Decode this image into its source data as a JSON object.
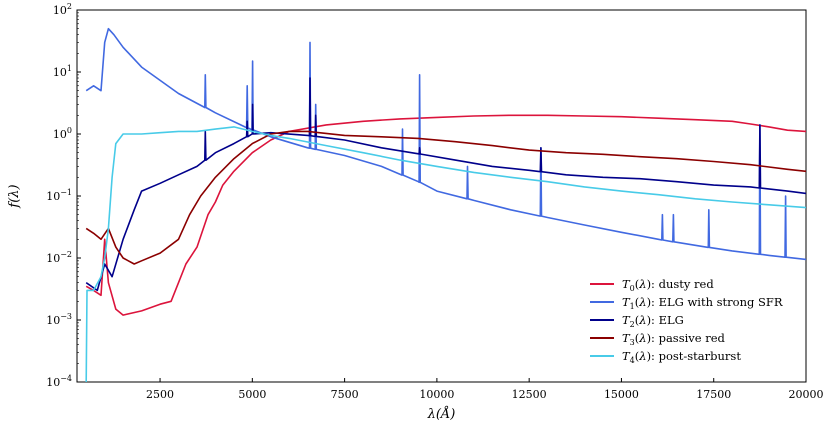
{
  "chart_data": {
    "type": "line",
    "title": "",
    "xlabel": "λ(Å)",
    "ylabel": "f(λ)",
    "xlim": [
      250,
      20000
    ],
    "ylim": [
      0.0001,
      100
    ],
    "yscale": "log",
    "grid": false,
    "legend_position": "lower-right",
    "x_ticks": [
      {
        "value": 2500,
        "label": "2500"
      },
      {
        "value": 5000,
        "label": "5000"
      },
      {
        "value": 7500,
        "label": "7500"
      },
      {
        "value": 10000,
        "label": "10000"
      },
      {
        "value": 12500,
        "label": "12500"
      },
      {
        "value": 15000,
        "label": "15000"
      },
      {
        "value": 17500,
        "label": "17500"
      },
      {
        "value": 20000,
        "label": "20000"
      }
    ],
    "y_ticks": [
      {
        "value": 0.0001,
        "base": "10",
        "exp": "−4"
      },
      {
        "value": 0.001,
        "base": "10",
        "exp": "−3"
      },
      {
        "value": 0.01,
        "base": "10",
        "exp": "−2"
      },
      {
        "value": 0.1,
        "base": "10",
        "exp": "−1"
      },
      {
        "value": 1,
        "base": "10",
        "exp": "0"
      },
      {
        "value": 10,
        "base": "10",
        "exp": "1"
      },
      {
        "value": 100,
        "base": "10",
        "exp": "2"
      }
    ],
    "series": [
      {
        "name": "T0(λ): dusty red",
        "label_sub": "0",
        "label_text": ": dusty red",
        "color": "#dc143c",
        "points": [
          [
            500,
            0.0035
          ],
          [
            700,
            0.003
          ],
          [
            900,
            0.0025
          ],
          [
            1000,
            0.02
          ],
          [
            1100,
            0.004
          ],
          [
            1300,
            0.0015
          ],
          [
            1500,
            0.0012
          ],
          [
            2000,
            0.0014
          ],
          [
            2500,
            0.0018
          ],
          [
            2800,
            0.002
          ],
          [
            3000,
            0.004
          ],
          [
            3200,
            0.008
          ],
          [
            3500,
            0.015
          ],
          [
            3800,
            0.05
          ],
          [
            4000,
            0.08
          ],
          [
            4200,
            0.15
          ],
          [
            4500,
            0.25
          ],
          [
            5000,
            0.5
          ],
          [
            5500,
            0.8
          ],
          [
            6000,
            1.1
          ],
          [
            7000,
            1.4
          ],
          [
            8000,
            1.6
          ],
          [
            9000,
            1.75
          ],
          [
            10000,
            1.85
          ],
          [
            11000,
            1.95
          ],
          [
            12000,
            2.0
          ],
          [
            13000,
            2.0
          ],
          [
            14000,
            1.95
          ],
          [
            15000,
            1.9
          ],
          [
            16000,
            1.8
          ],
          [
            17000,
            1.7
          ],
          [
            18000,
            1.6
          ],
          [
            18500,
            1.45
          ],
          [
            19000,
            1.3
          ],
          [
            19500,
            1.15
          ],
          [
            20000,
            1.1
          ]
        ]
      },
      {
        "name": "T1(λ): ELG with strong SFR",
        "label_sub": "1",
        "label_text": ": ELG with strong SFR",
        "color": "#4169e1",
        "points": [
          [
            500,
            5
          ],
          [
            700,
            6
          ],
          [
            900,
            5
          ],
          [
            1000,
            30
          ],
          [
            1100,
            50
          ],
          [
            1250,
            40
          ],
          [
            1500,
            25
          ],
          [
            2000,
            12
          ],
          [
            3000,
            4.5
          ],
          [
            4000,
            2.2
          ],
          [
            4800,
            1.3
          ],
          [
            5500,
            0.9
          ],
          [
            6500,
            0.6
          ],
          [
            7500,
            0.45
          ],
          [
            8500,
            0.3
          ],
          [
            9500,
            0.17
          ],
          [
            10000,
            0.12
          ],
          [
            11000,
            0.085
          ],
          [
            12000,
            0.06
          ],
          [
            13000,
            0.045
          ],
          [
            14000,
            0.034
          ],
          [
            15000,
            0.026
          ],
          [
            16000,
            0.02
          ],
          [
            17000,
            0.016
          ],
          [
            18000,
            0.013
          ],
          [
            19000,
            0.011
          ],
          [
            20000,
            0.0095
          ]
        ],
        "spikes": [
          [
            3727,
            9
          ],
          [
            4861,
            6
          ],
          [
            5007,
            15
          ],
          [
            6563,
            30
          ],
          [
            6717,
            3
          ],
          [
            9069,
            1.2
          ],
          [
            9532,
            9
          ],
          [
            10830,
            0.3
          ],
          [
            12818,
            0.6
          ],
          [
            16109,
            0.05
          ],
          [
            16407,
            0.05
          ],
          [
            17367,
            0.06
          ],
          [
            18751,
            1.4
          ],
          [
            19446,
            0.1
          ]
        ]
      },
      {
        "name": "T2(λ): ELG",
        "label_sub": "2",
        "label_text": ": ELG",
        "color": "#00008b",
        "points": [
          [
            500,
            0.004
          ],
          [
            800,
            0.003
          ],
          [
            1000,
            0.008
          ],
          [
            1200,
            0.005
          ],
          [
            1500,
            0.02
          ],
          [
            1800,
            0.06
          ],
          [
            2000,
            0.12
          ],
          [
            2500,
            0.16
          ],
          [
            3000,
            0.22
          ],
          [
            3500,
            0.3
          ],
          [
            4000,
            0.5
          ],
          [
            4500,
            0.7
          ],
          [
            5000,
            1.0
          ],
          [
            5500,
            1.05
          ],
          [
            6500,
            0.95
          ],
          [
            7500,
            0.8
          ],
          [
            8500,
            0.6
          ],
          [
            9500,
            0.48
          ],
          [
            10500,
            0.38
          ],
          [
            11500,
            0.3
          ],
          [
            12500,
            0.26
          ],
          [
            13500,
            0.22
          ],
          [
            14500,
            0.2
          ],
          [
            15500,
            0.19
          ],
          [
            16500,
            0.17
          ],
          [
            17500,
            0.15
          ],
          [
            18500,
            0.14
          ],
          [
            19500,
            0.12
          ],
          [
            20000,
            0.11
          ]
        ],
        "spikes": [
          [
            3727,
            1.1
          ],
          [
            4861,
            1.6
          ],
          [
            5007,
            3
          ],
          [
            6563,
            8
          ],
          [
            6717,
            2
          ],
          [
            9532,
            0.6
          ],
          [
            12818,
            0.6
          ],
          [
            18751,
            1.4
          ]
        ]
      },
      {
        "name": "T3(λ): passive red",
        "label_sub": "3",
        "label_text": ": passive red",
        "color": "#8b0000",
        "points": [
          [
            500,
            0.03
          ],
          [
            700,
            0.025
          ],
          [
            900,
            0.02
          ],
          [
            1100,
            0.03
          ],
          [
            1300,
            0.015
          ],
          [
            1500,
            0.01
          ],
          [
            1800,
            0.008
          ],
          [
            2000,
            0.009
          ],
          [
            2500,
            0.012
          ],
          [
            3000,
            0.02
          ],
          [
            3300,
            0.05
          ],
          [
            3600,
            0.1
          ],
          [
            4000,
            0.2
          ],
          [
            4500,
            0.4
          ],
          [
            5000,
            0.7
          ],
          [
            5500,
            1.0
          ],
          [
            6000,
            1.1
          ],
          [
            6500,
            1.1
          ],
          [
            7500,
            0.95
          ],
          [
            8500,
            0.9
          ],
          [
            9500,
            0.85
          ],
          [
            10500,
            0.75
          ],
          [
            11500,
            0.65
          ],
          [
            12500,
            0.55
          ],
          [
            13500,
            0.5
          ],
          [
            14500,
            0.47
          ],
          [
            15500,
            0.43
          ],
          [
            16500,
            0.4
          ],
          [
            17500,
            0.36
          ],
          [
            18500,
            0.32
          ],
          [
            19500,
            0.27
          ],
          [
            20000,
            0.25
          ]
        ]
      },
      {
        "name": "T4(λ): post-starburst",
        "label_sub": "4",
        "label_text": ": post-starburst",
        "color": "#48cbe8",
        "points": [
          [
            500,
            0.0001
          ],
          [
            520,
            0.003
          ],
          [
            700,
            0.003
          ],
          [
            900,
            0.005
          ],
          [
            1000,
            0.01
          ],
          [
            1100,
            0.03
          ],
          [
            1200,
            0.2
          ],
          [
            1300,
            0.7
          ],
          [
            1500,
            1.0
          ],
          [
            2000,
            1.0
          ],
          [
            2500,
            1.05
          ],
          [
            3000,
            1.1
          ],
          [
            3500,
            1.1
          ],
          [
            4000,
            1.2
          ],
          [
            4500,
            1.3
          ],
          [
            5000,
            1.1
          ],
          [
            5500,
            0.95
          ],
          [
            6000,
            0.85
          ],
          [
            7000,
            0.65
          ],
          [
            8000,
            0.5
          ],
          [
            9000,
            0.38
          ],
          [
            10000,
            0.3
          ],
          [
            11000,
            0.24
          ],
          [
            12000,
            0.2
          ],
          [
            13000,
            0.17
          ],
          [
            14000,
            0.14
          ],
          [
            15000,
            0.12
          ],
          [
            16000,
            0.105
          ],
          [
            17000,
            0.09
          ],
          [
            18000,
            0.08
          ],
          [
            19000,
            0.072
          ],
          [
            20000,
            0.065
          ]
        ]
      }
    ]
  }
}
